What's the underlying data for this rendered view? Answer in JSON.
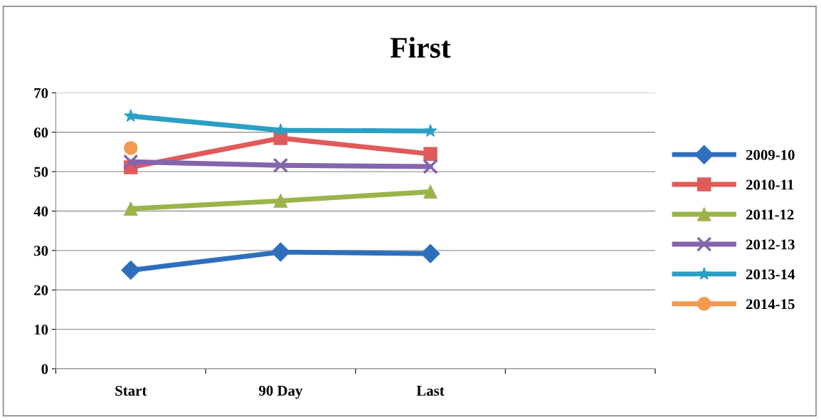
{
  "chart_data": {
    "type": "line",
    "title": "First",
    "categories": [
      "Start",
      "90 Day",
      "Last",
      null
    ],
    "ylim": [
      0,
      70
    ],
    "yticks": [
      0,
      10,
      20,
      30,
      40,
      50,
      60,
      70
    ],
    "grid": "y",
    "legend": "right",
    "series": [
      {
        "name": "2009-10",
        "color": "#2e6fbd",
        "marker": "diamond",
        "values": [
          25,
          29.6,
          29.2,
          null
        ]
      },
      {
        "name": "2010-11",
        "color": "#e05a5a",
        "marker": "square",
        "values": [
          51.1,
          58.5,
          54.5,
          null
        ]
      },
      {
        "name": "2011-12",
        "color": "#9bb44a",
        "marker": "triangle",
        "values": [
          40.6,
          42.6,
          44.9,
          null
        ]
      },
      {
        "name": "2012-13",
        "color": "#8465ad",
        "marker": "cross",
        "values": [
          52.5,
          51.6,
          51.3,
          null
        ]
      },
      {
        "name": "2013-14",
        "color": "#2aa0c4",
        "marker": "star",
        "values": [
          64.1,
          60.5,
          60.3,
          null
        ]
      },
      {
        "name": "2014-15",
        "color": "#f39a4f",
        "marker": "circle",
        "values": [
          56.0,
          null,
          null,
          null
        ]
      }
    ]
  }
}
